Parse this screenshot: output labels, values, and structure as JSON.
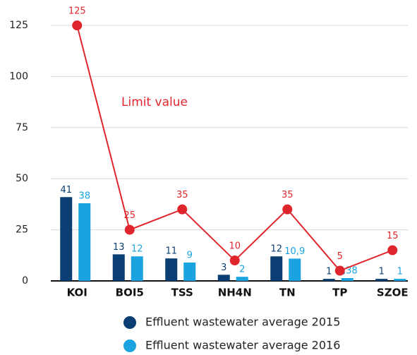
{
  "chart_data": {
    "type": "bar",
    "categories": [
      "KOI",
      "BOI5",
      "TSS",
      "NH4N",
      "TN",
      "TP",
      "SZOE"
    ],
    "series": [
      {
        "name": "Effluent wastewater average 2015",
        "color": "#0b3f73",
        "values": [
          41,
          13,
          11,
          3,
          12,
          1,
          1
        ]
      },
      {
        "name": "Effluent wastewater average 2016",
        "color": "#1aa3de",
        "values": [
          38,
          12,
          9,
          2,
          10.9,
          1.38,
          1
        ],
        "value_labels": [
          "38",
          "12",
          "9",
          "2",
          "10,9",
          "1,38",
          "1"
        ]
      },
      {
        "name": "Limit value",
        "type": "line",
        "color": "#e0262d",
        "values": [
          125,
          25,
          35,
          10,
          35,
          5,
          15
        ]
      }
    ],
    "ylim": [
      0,
      125
    ],
    "yticks": [
      0,
      25,
      50,
      75,
      100,
      125
    ],
    "grid": true
  }
}
